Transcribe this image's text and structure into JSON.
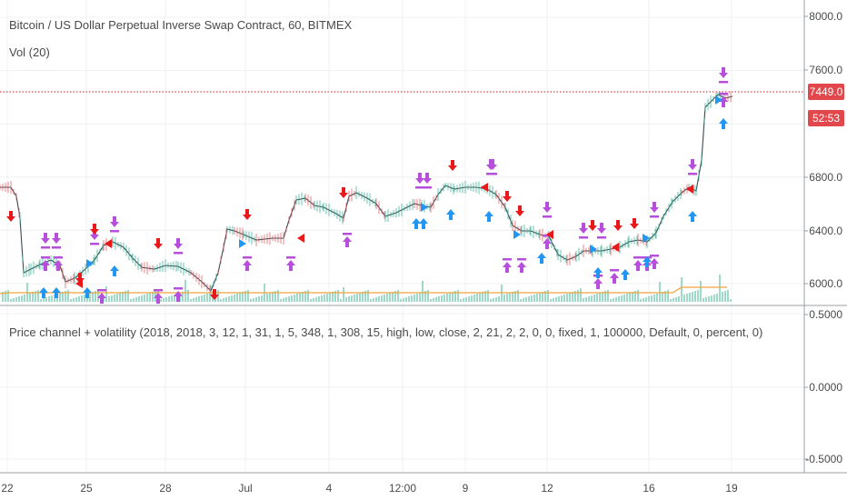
{
  "main_pane": {
    "title": "Bitcoin / US Dollar Perpetual Inverse Swap Contract, 60, BITMEX",
    "volume_indicator": "Vol (20)",
    "price_axis": [
      "8000.0",
      "7600.0",
      "6800.0",
      "6400.0",
      "6000.0"
    ],
    "last_price": "7449.0",
    "countdown": "52:53",
    "colors": {
      "price_tag": "#e2474b",
      "up_arrow": "#2196f3",
      "down_arrow": "#e8181b",
      "exit_marker": "#b84fdc",
      "volume_ma": "#f2a33a"
    }
  },
  "lower_pane": {
    "indicator": "Price channel + volatility (2018, 2018, 3, 12, 1, 31, 1, 5, 348, 1, 308, 15, high, low, close, 2, 21, 2, 2, 0, 0, fixed, 1, 100000, Default, 0, percent, 0)",
    "axis": [
      "0.5000",
      "0.0000",
      "-0.5000"
    ]
  },
  "time_axis": [
    "22",
    "25",
    "28",
    "Jul",
    "4",
    "12:00",
    "9",
    "12",
    "16",
    "19"
  ],
  "chart_data": {
    "type": "candlestick",
    "title": "Bitcoin / US Dollar Perpetual Inverse Swap Contract, 60, BITMEX",
    "x": [
      "22",
      "25",
      "28",
      "Jul",
      "4",
      "12:00",
      "9",
      "12",
      "16",
      "19"
    ],
    "close_approx": [
      6720,
      6140,
      6100,
      5980,
      6380,
      6720,
      6600,
      6720,
      6280,
      6200,
      6300,
      7449
    ],
    "ylim": [
      5900,
      8100
    ],
    "last_price": 7449.0
  }
}
